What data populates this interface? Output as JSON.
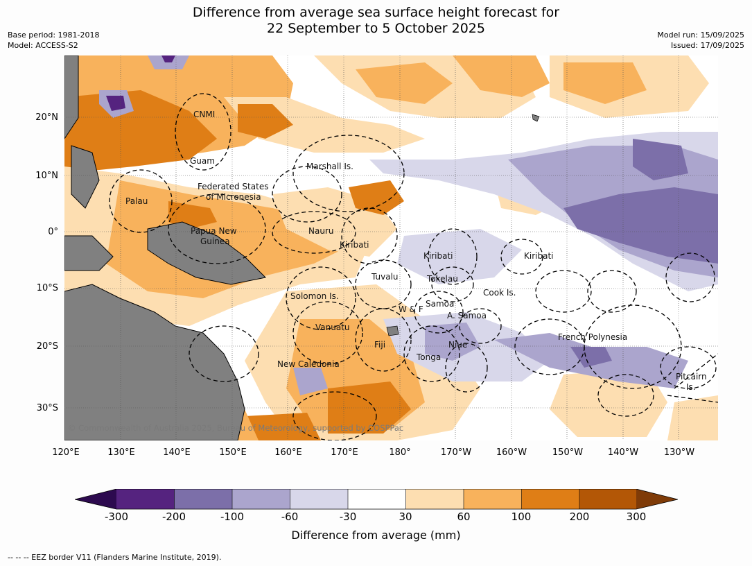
{
  "title_line1": "Difference from average sea surface height forecast for",
  "title_line2": "22 September to 5 October 2025",
  "base_period": "Base period: 1981-2018",
  "model": "Model: ACCESS-S2",
  "model_run": "Model run: 15/09/2025",
  "issued": "Issued: 17/09/2025",
  "latitude_labels": [
    "20°N",
    "10°N",
    "0°",
    "10°S",
    "20°S",
    "30°S"
  ],
  "longitude_labels": [
    "120°E",
    "130°E",
    "140°E",
    "150°E",
    "160°E",
    "170°E",
    "180°",
    "170°W",
    "160°W",
    "150°W",
    "140°W",
    "130°W"
  ],
  "places": {
    "cnmi": "CNMI",
    "guam": "Guam",
    "marshall": "Marshall Is.",
    "fsm_1": "Federated States",
    "fsm_2": "of Micronesia",
    "palau": "Palau",
    "png_1": "Papua New",
    "png_2": "Guinea",
    "nauru": "Nauru",
    "kiribati_w": "Kiribati",
    "kiribati_c": "Kiribati",
    "kiribati_e": "Kiribati",
    "tuvalu": "Tuvalu",
    "tokelau": "Tokelau",
    "cook": "Cook Is.",
    "solomon": "Solomon Is.",
    "wf": "W & F",
    "samoa": "Samoa",
    "asamoa": "A. Samoa",
    "vanuatu": "Vanuatu",
    "fiji": "Fiji",
    "niue": "Niue",
    "tonga": "Tonga",
    "fp": "French Polynesia",
    "newcal": "New Caledonia",
    "pitcairn_1": "Pitcairn",
    "pitcairn_2": "Is."
  },
  "copyright": "© Commonwealth of Australia 2025, Bureau of Meteorology, supported by COSPPac",
  "colorbar": {
    "ticks": [
      "-300",
      "-200",
      "-100",
      "-60",
      "-30",
      "30",
      "60",
      "100",
      "200",
      "300"
    ],
    "colors": [
      "#2d0a4f",
      "#55237f",
      "#7c6fa9",
      "#aba5cd",
      "#d8d7ea",
      "#ffffff",
      "#fddeb1",
      "#f8b25c",
      "#df7e16",
      "#b35706",
      "#7f3b08"
    ],
    "label": "Difference from average (mm)"
  },
  "footnote": "--  --  -- EEZ border V11 (Flanders Marine Institute, 2019)."
}
